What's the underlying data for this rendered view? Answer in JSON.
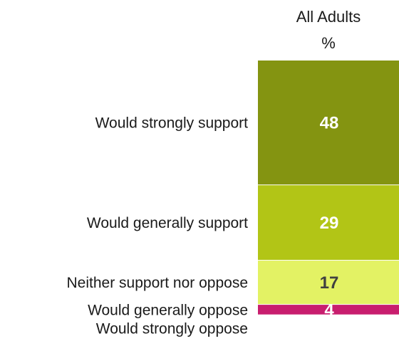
{
  "chart_data": {
    "type": "bar",
    "stacked": true,
    "orientation": "vertical",
    "column_header": "All Adults",
    "unit_label": "%",
    "categories": [
      "Would strongly support",
      "Would generally support",
      "Neither support nor oppose",
      "Would generally oppose",
      "Would strongly oppose"
    ],
    "values": [
      48,
      29,
      17,
      4,
      0
    ],
    "data_labels": [
      "48",
      "29",
      "17",
      "4",
      ""
    ],
    "colors": [
      "#849411",
      "#b2c516",
      "#e3f264",
      "#c81e6e",
      "#a01450"
    ],
    "label_colors": [
      "#ffffff",
      "#ffffff",
      "#404040",
      "#ffffff",
      "#ffffff"
    ],
    "segment_separator_color": "#ffffff",
    "ylim": [
      0,
      100
    ],
    "legend": "none",
    "grid": false,
    "title": "",
    "xlabel": "",
    "ylabel": ""
  }
}
